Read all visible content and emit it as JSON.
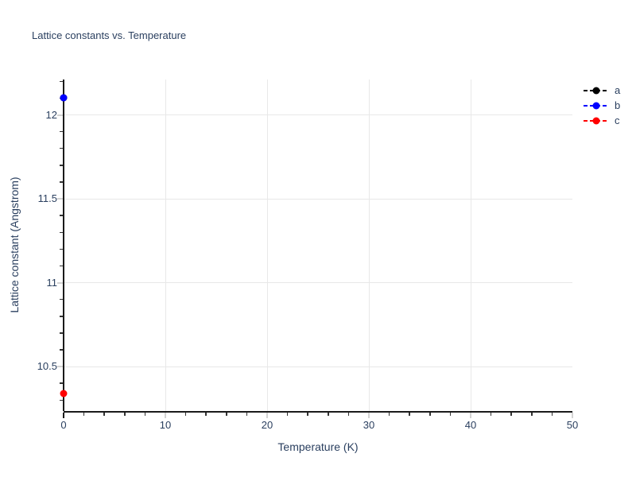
{
  "chart_data": {
    "type": "scatter",
    "title": "Lattice constants vs. Temperature",
    "xlabel": "Temperature (K)",
    "ylabel": "Lattice constant (Angstrom)",
    "xlim": [
      0,
      50
    ],
    "ylim": [
      10.235,
      12.211
    ],
    "x_major_ticks": [
      0,
      10,
      20,
      30,
      40,
      50
    ],
    "x_tick_labels": [
      "0",
      "10",
      "20",
      "30",
      "40",
      "50"
    ],
    "x_minor_step": 2,
    "y_major_ticks": [
      10.5,
      11,
      11.5,
      12
    ],
    "y_tick_labels": [
      "10.5",
      "11",
      "11.5",
      "12"
    ],
    "y_minor_step": 0.1,
    "grid": true,
    "legend_position": "top-right",
    "series": [
      {
        "name": "a",
        "color": "#000000",
        "line_style": "dash",
        "marker": "circle",
        "x": [
          0
        ],
        "y": [
          12.1
        ]
      },
      {
        "name": "b",
        "color": "#0000ff",
        "line_style": "dash",
        "marker": "circle",
        "x": [
          0
        ],
        "y": [
          12.1
        ]
      },
      {
        "name": "c",
        "color": "#ff0000",
        "line_style": "dash",
        "marker": "circle",
        "x": [
          0
        ],
        "y": [
          10.34
        ]
      }
    ],
    "colors": {
      "text": "#2a3f5f",
      "grid": "#e8e8e8",
      "axis_line": "#1a1a1a",
      "major_tick": "#d3d3d3",
      "minor_tick": "#333333",
      "background": "#ffffff"
    }
  }
}
